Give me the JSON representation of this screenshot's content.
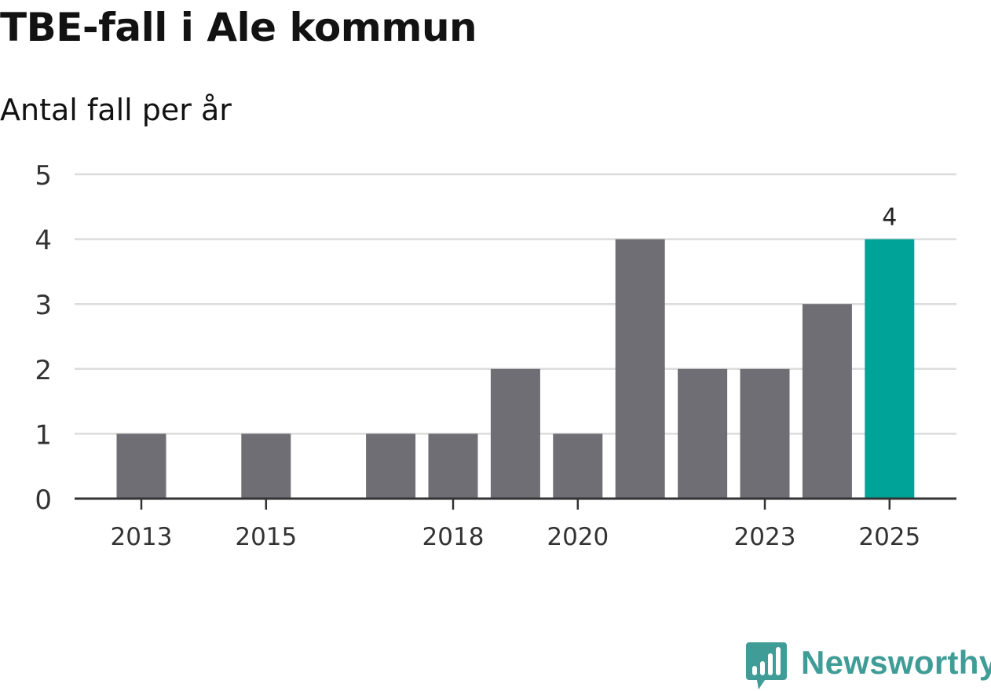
{
  "chart_data": {
    "type": "bar",
    "title": "TBE-fall i Ale kommun",
    "subtitle": "Antal fall per år",
    "xlabel": "",
    "ylabel": "",
    "categories": [
      "2013",
      "2014",
      "2015",
      "2016",
      "2017",
      "2018",
      "2019",
      "2020",
      "2021",
      "2022",
      "2023",
      "2024",
      "2025"
    ],
    "values": [
      1,
      0,
      1,
      0,
      1,
      1,
      2,
      1,
      4,
      2,
      2,
      3,
      4
    ],
    "ylim": [
      0,
      5
    ],
    "yticks": [
      0,
      1,
      2,
      3,
      4,
      5
    ],
    "xtick_labels": [
      "2013",
      "2015",
      "2018",
      "2020",
      "2023",
      "2025"
    ],
    "grid": true,
    "bar_color": "#6f6e74",
    "highlight_color": "#00a398",
    "highlight_category": "2025",
    "data_labels": [
      {
        "category": "2025",
        "text": "4"
      }
    ]
  },
  "brand": {
    "name": "Newsworthy",
    "logo_icon": "newsworthy-logo-icon",
    "color": "#409c96"
  }
}
